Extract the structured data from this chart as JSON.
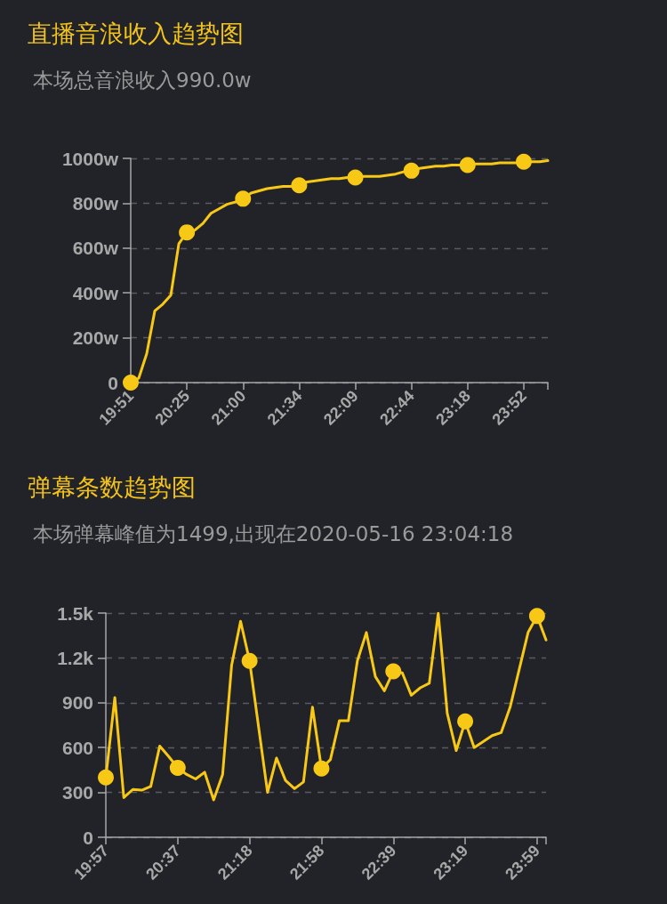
{
  "chart_data": [
    {
      "type": "line",
      "title": "直播音浪收入趋势图",
      "subtitle": "本场总音浪收入990.0w",
      "categories": [
        "19:51",
        null,
        null,
        null,
        null,
        null,
        null,
        "20:25",
        null,
        null,
        null,
        null,
        null,
        null,
        "21:00",
        null,
        null,
        null,
        null,
        null,
        null,
        "21:34",
        null,
        null,
        null,
        null,
        null,
        null,
        "22:09",
        null,
        null,
        null,
        null,
        null,
        null,
        "22:44",
        null,
        null,
        null,
        null,
        null,
        null,
        "23:18",
        null,
        null,
        null,
        null,
        null,
        null,
        "23:52",
        null,
        null,
        null
      ],
      "series": [
        {
          "color": "#f7c815",
          "marker": "none",
          "values": [
            0,
            20,
            130,
            320,
            350,
            390,
            620,
            670,
            680,
            710,
            755,
            775,
            795,
            805,
            820,
            845,
            855,
            865,
            870,
            875,
            875,
            880,
            895,
            900,
            905,
            910,
            910,
            915,
            915,
            920,
            920,
            920,
            925,
            930,
            940,
            945,
            955,
            960,
            965,
            965,
            970,
            970,
            970,
            975,
            975,
            975,
            980,
            980,
            980,
            985,
            985,
            985,
            990
          ]
        },
        {
          "type": "scatter",
          "color": "#f7c815",
          "marker": "circle",
          "x": [
            "19:51",
            "20:25",
            "21:00",
            "21:34",
            "22:09",
            "22:44",
            "23:18",
            "23:52"
          ],
          "values": [
            0,
            670,
            820,
            880,
            915,
            945,
            970,
            985
          ]
        }
      ],
      "ylim": [
        0,
        1000
      ],
      "yticks": [
        0,
        {
          "value": 200,
          "label": "200w"
        },
        {
          "value": 400,
          "label": "400w"
        },
        {
          "value": 600,
          "label": "600w"
        },
        {
          "value": 800,
          "label": "800w"
        },
        {
          "value": 1000,
          "label": "1000w"
        }
      ],
      "grid": "y"
    },
    {
      "type": "line",
      "title": "弹幕条数趋势图",
      "subtitle": "本场弹幕峰值为1499,出现在2020-05-16 23:04:18",
      "categories": [
        "19:57",
        null,
        null,
        null,
        null,
        null,
        null,
        null,
        "20:37",
        null,
        null,
        null,
        null,
        null,
        null,
        null,
        "21:18",
        null,
        null,
        null,
        null,
        null,
        null,
        null,
        "21:58",
        null,
        null,
        null,
        null,
        null,
        null,
        null,
        "22:39",
        null,
        null,
        null,
        null,
        null,
        null,
        null,
        "23:19",
        null,
        null,
        null,
        null,
        null,
        null,
        null,
        "23:59",
        null
      ],
      "series": [
        {
          "color": "#f7c815",
          "marker": "none",
          "values": [
            400,
            935,
            265,
            320,
            315,
            340,
            610,
            540,
            465,
            420,
            390,
            435,
            250,
            420,
            1150,
            1445,
            1180,
            740,
            300,
            530,
            380,
            325,
            370,
            870,
            460,
            520,
            780,
            780,
            1180,
            1370,
            1075,
            980,
            1110,
            1100,
            950,
            1000,
            1030,
            1499,
            830,
            580,
            775,
            600,
            640,
            680,
            700,
            870,
            1120,
            1370,
            1480,
            1320
          ]
        },
        {
          "type": "scatter",
          "color": "#f7c815",
          "marker": "circle",
          "x": [
            "19:57",
            "20:37",
            "21:18",
            "21:58",
            "22:39",
            "23:19",
            "23:59"
          ],
          "values": [
            400,
            465,
            1180,
            460,
            1110,
            775,
            1480
          ]
        }
      ],
      "ylim": [
        0,
        1500
      ],
      "yticks": [
        0,
        300,
        600,
        900,
        {
          "value": 1200,
          "label": "1.2k"
        },
        {
          "value": 1500,
          "label": "1.5k"
        }
      ],
      "grid": "y"
    }
  ]
}
